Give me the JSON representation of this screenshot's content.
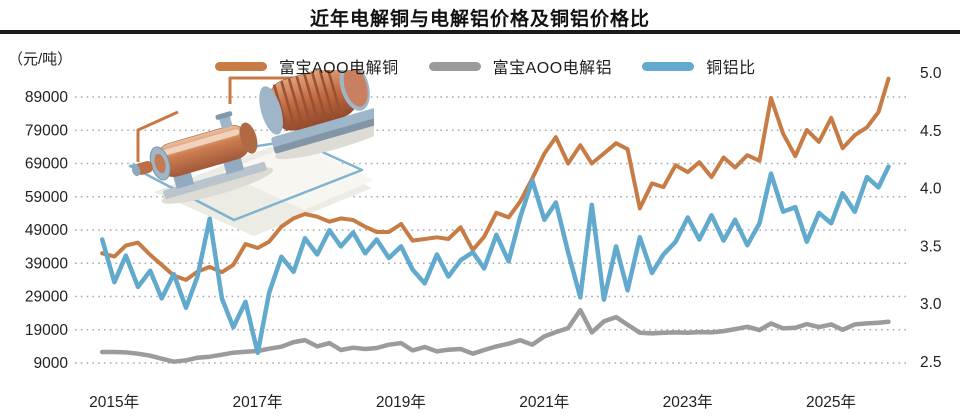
{
  "header": {
    "title": "近年电解铜与电解铝价格及铜铝价格比"
  },
  "unit_label": "（元/吨）",
  "legend": [
    {
      "label": "富宝AOO电解铜",
      "color": "#C77B45"
    },
    {
      "label": "富宝AOO电解铝",
      "color": "#9B9B9B"
    },
    {
      "label": "铜铝比",
      "color": "#61A9CD"
    }
  ],
  "colors": {
    "copper_line": "#C77B45",
    "aluminum_line": "#9B9B9B",
    "ratio_line": "#61A9CD",
    "gridline": "#a9a9a9",
    "axis_text": "#222222",
    "title_rule": "#1b1b1b"
  },
  "chart_data": {
    "type": "line",
    "title": "近年电解铜与电解铝价格及铜铝价格比",
    "ylabel_left": "（元/吨）",
    "grid": "horizontal dotted",
    "legend_position": "top",
    "x_axis": {
      "tick_years": [
        2015,
        2017,
        2019,
        2021,
        2023,
        2025
      ],
      "tick_suffix": "年",
      "range": [
        2014.9,
        2026.2
      ]
    },
    "price_axis": {
      "side": "left",
      "ticks": [
        89000,
        79000,
        69000,
        59000,
        49000,
        39000,
        29000,
        19000,
        9000
      ],
      "range": [
        9000,
        89000
      ]
    },
    "ratio_axis": {
      "side": "right",
      "ticks": [
        5.0,
        4.5,
        4.0,
        3.5,
        3.0,
        2.5
      ],
      "range": [
        2.5,
        5.0
      ]
    },
    "x": [
      2015.0,
      2015.17,
      2015.33,
      2015.5,
      2015.67,
      2015.83,
      2016.0,
      2016.17,
      2016.33,
      2016.5,
      2016.67,
      2016.83,
      2017.0,
      2017.17,
      2017.33,
      2017.5,
      2017.67,
      2017.83,
      2018.0,
      2018.17,
      2018.33,
      2018.5,
      2018.67,
      2018.83,
      2019.0,
      2019.17,
      2019.33,
      2019.5,
      2019.67,
      2019.83,
      2020.0,
      2020.17,
      2020.33,
      2020.5,
      2020.67,
      2020.83,
      2021.0,
      2021.17,
      2021.33,
      2021.5,
      2021.67,
      2021.83,
      2022.0,
      2022.17,
      2022.33,
      2022.5,
      2022.67,
      2022.83,
      2023.0,
      2023.17,
      2023.33,
      2023.5,
      2023.67,
      2023.83,
      2024.0,
      2024.17,
      2024.33,
      2024.5,
      2024.67,
      2024.83,
      2025.0,
      2025.17,
      2025.33,
      2025.5,
      2025.67,
      2025.83,
      2025.97
    ],
    "series": [
      {
        "name": "富宝AOO电解铜",
        "axis": "price",
        "color": "#C77B45",
        "width": 4,
        "values": [
          42000,
          41000,
          44300,
          45200,
          41500,
          38500,
          35300,
          34000,
          36500,
          37900,
          36300,
          38500,
          44800,
          43600,
          45500,
          50000,
          52500,
          53800,
          53000,
          51500,
          52500,
          52000,
          50000,
          48400,
          48400,
          50800,
          45800,
          46300,
          46800,
          46300,
          49800,
          43000,
          47000,
          54200,
          52800,
          57500,
          64500,
          72000,
          76900,
          69000,
          74500,
          69000,
          72000,
          75100,
          73300,
          55500,
          63000,
          61900,
          68500,
          66400,
          69400,
          64900,
          70800,
          67800,
          71500,
          69800,
          88700,
          78000,
          71200,
          79100,
          75500,
          82700,
          73600,
          77500,
          79900,
          84500,
          94500
        ]
      },
      {
        "name": "富宝AOO电解铝",
        "axis": "price",
        "color": "#9B9B9B",
        "width": 4.5,
        "values": [
          12300,
          12300,
          12200,
          11800,
          11200,
          10300,
          9400,
          9800,
          10600,
          10900,
          11500,
          12100,
          12400,
          12600,
          13300,
          13900,
          15300,
          15900,
          14000,
          15000,
          12900,
          13600,
          13200,
          13500,
          14500,
          15000,
          12800,
          13800,
          12500,
          13000,
          13200,
          11800,
          12900,
          14000,
          14800,
          15900,
          14500,
          17000,
          18300,
          19500,
          24900,
          18200,
          21500,
          22800,
          20500,
          18100,
          17900,
          18100,
          18200,
          18100,
          18300,
          18200,
          18600,
          19200,
          19900,
          18900,
          20900,
          19400,
          19600,
          20700,
          19800,
          20600,
          19000,
          20600,
          20900,
          21100,
          21400
        ]
      },
      {
        "name": "铜铝比",
        "axis": "ratio",
        "color": "#61A9CD",
        "width": 4.5,
        "values": [
          3.56,
          3.19,
          3.42,
          3.15,
          3.29,
          3.05,
          3.26,
          2.97,
          3.24,
          3.74,
          3.05,
          2.8,
          3.02,
          2.58,
          3.1,
          3.41,
          3.28,
          3.57,
          3.43,
          3.64,
          3.5,
          3.62,
          3.44,
          3.56,
          3.4,
          3.5,
          3.3,
          3.18,
          3.43,
          3.24,
          3.38,
          3.45,
          3.31,
          3.6,
          3.37,
          3.75,
          4.07,
          3.73,
          3.88,
          3.45,
          3.06,
          3.86,
          3.04,
          3.5,
          3.12,
          3.58,
          3.27,
          3.43,
          3.54,
          3.75,
          3.56,
          3.77,
          3.55,
          3.73,
          3.51,
          3.7,
          4.13,
          3.8,
          3.84,
          3.54,
          3.79,
          3.7,
          3.96,
          3.8,
          4.1,
          4.01,
          4.19
        ]
      }
    ]
  }
}
